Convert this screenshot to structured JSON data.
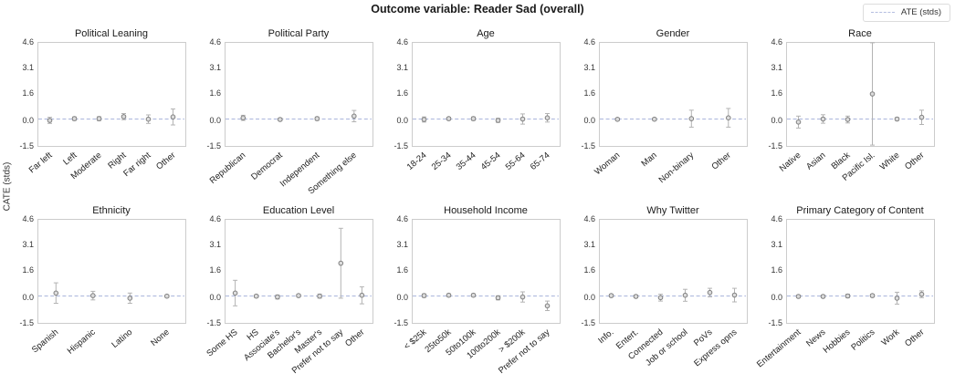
{
  "title": "Outcome variable: Reader Sad (overall)",
  "ylabel": "CATE (stds)",
  "legend": {
    "label": "ATE (stds)",
    "line_style": "dashed"
  },
  "ate_value": 0.08,
  "colors": {
    "ate_line": "#b4bee0",
    "error_bar": "#b3b3b3",
    "point_fill": "#dcdcdc",
    "point_edge": "#7f7f7f",
    "frame": "#cccccc"
  },
  "yaxis": {
    "min": -1.5,
    "max": 4.6,
    "ticks": [
      {
        "v": 4.6,
        "label": "4.6"
      },
      {
        "v": 3.1,
        "label": "3.1"
      },
      {
        "v": 1.6,
        "label": "1.6"
      },
      {
        "v": 0.0,
        "label": "0.0"
      },
      {
        "v": -1.5,
        "label": "-1.5"
      }
    ]
  },
  "chart_data": [
    {
      "type": "scatter",
      "title": "Political Leaning",
      "categories": [
        "Far left",
        "Left",
        "Moderate",
        "Right",
        "Far right",
        "Other"
      ],
      "values": [
        0.0,
        0.1,
        0.1,
        0.22,
        0.07,
        0.2
      ],
      "errors": [
        0.18,
        0.1,
        0.12,
        0.18,
        0.25,
        0.47
      ],
      "ylim": [
        -1.5,
        4.6
      ]
    },
    {
      "type": "scatter",
      "title": "Political Party",
      "categories": [
        "Republican",
        "Democrat",
        "Independent",
        "Something else"
      ],
      "values": [
        0.15,
        0.05,
        0.1,
        0.25
      ],
      "errors": [
        0.15,
        0.08,
        0.1,
        0.33
      ],
      "ylim": [
        -1.5,
        4.6
      ]
    },
    {
      "type": "scatter",
      "title": "Age",
      "categories": [
        "18-24",
        "25-34",
        "35-44",
        "45-54",
        "55-64",
        "65-74"
      ],
      "values": [
        0.05,
        0.1,
        0.1,
        0.0,
        0.08,
        0.15
      ],
      "errors": [
        0.15,
        0.08,
        0.1,
        0.12,
        0.3,
        0.25
      ],
      "ylim": [
        -1.5,
        4.6
      ]
    },
    {
      "type": "scatter",
      "title": "Gender",
      "categories": [
        "Woman",
        "Man",
        "Non-binary",
        "Other"
      ],
      "values": [
        0.06,
        0.07,
        0.1,
        0.15
      ],
      "errors": [
        0.07,
        0.07,
        0.5,
        0.55
      ],
      "ylim": [
        -1.5,
        4.6
      ]
    },
    {
      "type": "scatter",
      "title": "Race",
      "categories": [
        "Native",
        "Asian",
        "Black",
        "Pacific Isl.",
        "White",
        "Other"
      ],
      "values": [
        -0.1,
        0.08,
        0.05,
        1.55,
        0.08,
        0.18
      ],
      "errors": [
        0.35,
        0.25,
        0.2,
        3.0,
        0.08,
        0.42
      ],
      "ylim": [
        -1.5,
        4.6
      ]
    },
    {
      "type": "scatter",
      "title": "Ethnicity",
      "categories": [
        "Spanish",
        "Hispanic",
        "Latino",
        "None"
      ],
      "values": [
        0.25,
        0.1,
        -0.05,
        0.07
      ],
      "errors": [
        0.6,
        0.25,
        0.3,
        0.07
      ],
      "ylim": [
        -1.5,
        4.6
      ]
    },
    {
      "type": "scatter",
      "title": "Education Level",
      "categories": [
        "Some HS",
        "HS",
        "Associate's",
        "Bachelor's",
        "Master's",
        "Prefer not to say",
        "Other"
      ],
      "values": [
        0.25,
        0.07,
        0.02,
        0.1,
        0.07,
        2.0,
        0.12
      ],
      "errors": [
        0.75,
        0.08,
        0.12,
        0.08,
        0.12,
        2.05,
        0.5
      ],
      "ylim": [
        -1.5,
        4.6
      ]
    },
    {
      "type": "scatter",
      "title": "Household Income",
      "categories": [
        "< $25k",
        "25to50k",
        "50to100k",
        "100to200k",
        "> $200k",
        "Prefer not to say"
      ],
      "values": [
        0.1,
        0.12,
        0.12,
        -0.03,
        0.02,
        -0.5
      ],
      "errors": [
        0.1,
        0.08,
        0.08,
        0.12,
        0.3,
        0.28
      ],
      "ylim": [
        -1.5,
        4.6
      ]
    },
    {
      "type": "scatter",
      "title": "Why Twitter",
      "categories": [
        "Info.",
        "Entert.",
        "Connected",
        "Job or school",
        "PoVs",
        "Express opns"
      ],
      "values": [
        0.1,
        0.05,
        -0.02,
        0.12,
        0.28,
        0.13
      ],
      "errors": [
        0.08,
        0.08,
        0.2,
        0.35,
        0.25,
        0.4
      ],
      "ylim": [
        -1.5,
        4.6
      ]
    },
    {
      "type": "scatter",
      "title": "Primary Category of Content",
      "categories": [
        "Entertainment",
        "News",
        "Hobbies",
        "Politics",
        "Work",
        "Other"
      ],
      "values": [
        0.05,
        0.05,
        0.08,
        0.1,
        -0.05,
        0.18
      ],
      "errors": [
        0.07,
        0.07,
        0.1,
        0.08,
        0.35,
        0.2
      ],
      "ylim": [
        -1.5,
        4.6
      ]
    }
  ]
}
